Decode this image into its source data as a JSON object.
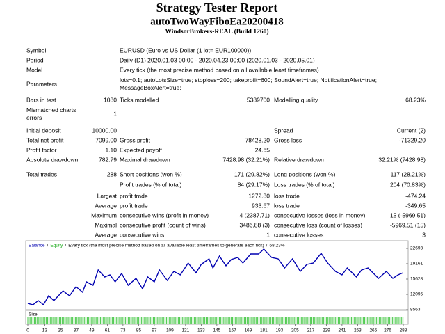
{
  "header": {
    "title": "Strategy Tester Report",
    "subtitle": "autoTwoWayFiboEa20200418",
    "server": "WindsorBrokers-REAL (Build 1260)"
  },
  "rows": [
    {
      "label": "Symbol",
      "text": "EURUSD (Euro vs US Dollar (1 lot= EUR100000))"
    },
    {
      "label": "Period",
      "text": "Daily (D1) 2020.01.03 00:00 - 2020.04.23 00:00 (2020.01.03 - 2020.05.01)"
    },
    {
      "label": "Model",
      "text": "Every tick (the most precise method based on all available least timeframes)"
    },
    {
      "label": "Parameters",
      "text": [
        "lots=0.1; autoLotsSize=true; stoploss=200; takeprofit=600; SoundAlert=true; NotificationAlert=true;",
        "MessageBoxAlert=true;"
      ]
    },
    {
      "label": "Bars in test",
      "value": "1080",
      "label2": "Ticks modelled",
      "value2": "5389700",
      "label3": "Modelling quality",
      "value3": "68.23%"
    },
    {
      "label": [
        "Mismatched charts",
        "errors"
      ],
      "value": "1"
    },
    {
      "label": "Initial deposit",
      "value": "10000.00",
      "label3": "Spread",
      "value3": "Current (2)"
    },
    {
      "label": "Total net profit",
      "value": "7099.00",
      "label2": "Gross profit",
      "value2": "78428.20",
      "label3": "Gross loss",
      "value3": "-71329.20"
    },
    {
      "label": "Profit factor",
      "value": "1.10",
      "label2": "Expected payoff",
      "value2": "24.65"
    },
    {
      "label": "Absolute drawdown",
      "value": "782.79",
      "label2": "Maximal drawdown",
      "value2": "7428.98 (32.21%)",
      "label3": "Relative drawdown",
      "value3": "32.21% (7428.98)"
    },
    {
      "label": "Total trades",
      "value": "288",
      "label2": "Short positions (won %)",
      "value2": "171 (29.82%)",
      "label3": "Long positions (won %)",
      "value3": "117 (28.21%)"
    },
    {
      "label2": "Profit trades (% of total)",
      "value2": "84 (29.17%)",
      "label3": "Loss trades (% of total)",
      "value3": "204 (70.83%)"
    },
    {
      "head": "Largest",
      "label2": "profit trade",
      "value2": "1272.80",
      "label3": "loss trade",
      "value3": "-474.24"
    },
    {
      "head": "Average",
      "label2": "profit trade",
      "value2": "933.67",
      "label3": "loss trade",
      "value3": "-349.65"
    },
    {
      "head": "Maximum",
      "label2": "consecutive wins (profit in money)",
      "value2": "4 (2387.71)",
      "label3": "consecutive losses (loss in money)",
      "value3": "15 (-5969.51)"
    },
    {
      "head": "Maximal",
      "label2": "consecutive profit (count of wins)",
      "value2": "3486.88 (3)",
      "label3": "consecutive loss (count of losses)",
      "value3": "-5969.51 (15)"
    },
    {
      "head": "Average",
      "label2": "consecutive wins",
      "value2": "1",
      "label3": "consecutive losses",
      "value3": "3"
    }
  ],
  "chart_data": {
    "type": "line",
    "legend": {
      "equity": "Equity",
      "model": "Every tick (the most precise method based on all available least timeframes to generate each tick)",
      "quality": "68.23%",
      "separator": "/"
    },
    "size_label": "Size",
    "x": [
      0,
      4,
      8,
      12,
      16,
      20,
      27,
      32,
      37,
      42,
      45,
      50,
      54,
      59,
      63,
      67,
      72,
      77,
      83,
      88,
      92,
      97,
      101,
      107,
      112,
      117,
      123,
      129,
      133,
      139,
      142,
      147,
      152,
      156,
      161,
      165,
      171,
      177,
      181,
      187,
      192,
      197,
      203,
      209,
      214,
      219,
      225,
      230,
      236,
      241,
      245,
      252,
      256,
      261,
      269,
      275,
      280,
      284,
      288
    ],
    "series": [
      {
        "name": "Balance",
        "color": "#0000b0",
        "values": [
          10000,
          9687,
          10650,
          9687,
          11774,
          10650,
          12898,
          11774,
          13862,
          12577,
          14986,
          14183,
          17715,
          16110,
          16591,
          14986,
          16912,
          14183,
          15788,
          13380,
          16110,
          14986,
          17715,
          15307,
          17394,
          16591,
          19321,
          17073,
          19000,
          20284,
          18197,
          20927,
          18679,
          20124,
          20606,
          19321,
          21408,
          21408,
          22532,
          20606,
          20284,
          18197,
          20284,
          17394,
          19000,
          19321,
          21569,
          19321,
          17394,
          16591,
          18197,
          16110,
          17715,
          18197,
          15788,
          17394,
          15788,
          16591,
          17099
        ]
      }
    ],
    "xlim": [
      0,
      288
    ],
    "ylim": [
      8563,
      22693
    ],
    "xticks": [
      0,
      13,
      25,
      37,
      49,
      61,
      73,
      85,
      97,
      109,
      121,
      133,
      145,
      157,
      169,
      181,
      193,
      205,
      217,
      229,
      241,
      253,
      265,
      276,
      288
    ],
    "yticks": [
      8563,
      12095,
      15628,
      19161,
      22693
    ],
    "equity_color": "#00a000"
  }
}
